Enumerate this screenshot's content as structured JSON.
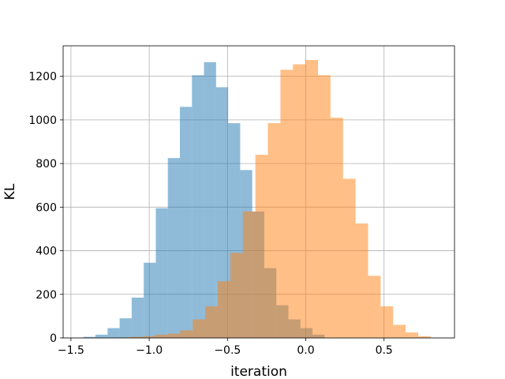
{
  "chart_data": {
    "type": "bar",
    "subtype": "overlapping-histogram",
    "title": "",
    "xlabel": "iteration",
    "ylabel": "KL",
    "xlim": [
      -1.55,
      0.95
    ],
    "ylim": [
      0,
      1340
    ],
    "xticks": [
      -1.5,
      -1.0,
      -0.5,
      0.0,
      0.5
    ],
    "xtick_labels": [
      "−1.5",
      "−1.0",
      "−0.5",
      "0.0",
      "0.5"
    ],
    "yticks": [
      0,
      200,
      400,
      600,
      800,
      1000,
      1200
    ],
    "ytick_labels": [
      "0",
      "200",
      "400",
      "600",
      "800",
      "1000",
      "1200"
    ],
    "grid": true,
    "legend": "none",
    "series": [
      {
        "color": "#1f77b4",
        "alpha": 0.5,
        "bin_edges": [
          -1.42,
          -1.343,
          -1.266,
          -1.189,
          -1.112,
          -1.035,
          -0.958,
          -0.881,
          -0.804,
          -0.727,
          -0.65,
          -0.573,
          -0.496,
          -0.419,
          -0.342,
          -0.265,
          -0.188,
          -0.111,
          -0.034,
          0.043,
          0.12
        ],
        "values": [
          5,
          15,
          45,
          90,
          185,
          345,
          595,
          825,
          1060,
          1205,
          1265,
          1150,
          985,
          770,
          580,
          320,
          150,
          85,
          45,
          15
        ]
      },
      {
        "color": "#ff7f0e",
        "alpha": 0.5,
        "bin_edges": [
          -1.202,
          -1.122,
          -1.042,
          -0.962,
          -0.882,
          -0.802,
          -0.722,
          -0.642,
          -0.562,
          -0.482,
          -0.402,
          -0.322,
          -0.242,
          -0.162,
          -0.082,
          -0.002,
          0.078,
          0.158,
          0.238,
          0.318,
          0.398,
          0.478,
          0.558,
          0.638,
          0.718,
          0.798
        ],
        "values": [
          2,
          5,
          8,
          15,
          20,
          35,
          85,
          145,
          260,
          390,
          580,
          840,
          985,
          1230,
          1255,
          1275,
          1205,
          1010,
          730,
          525,
          285,
          145,
          60,
          25,
          8
        ]
      }
    ]
  }
}
